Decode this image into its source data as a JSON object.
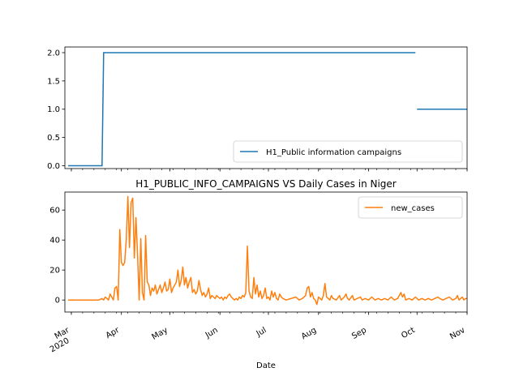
{
  "chart_data": [
    {
      "type": "line",
      "title": "",
      "xlabel": "",
      "ylabel": "",
      "ylim": [
        -0.05,
        2.1
      ],
      "yticks": [
        0.0,
        0.5,
        1.0,
        1.5,
        2.0
      ],
      "ytick_labels": [
        "0.0",
        "0.5",
        "1.0",
        "1.5",
        "2.0"
      ],
      "grid": false,
      "legend_position": "lower-right",
      "series": [
        {
          "name": "H1_Public information campaigns",
          "color": "#1f77b4",
          "segments": [
            [
              [
                "2020-02-28",
                0
              ],
              [
                "2020-03-20",
                0
              ],
              [
                "2020-03-21",
                2
              ],
              [
                "2020-09-30",
                2
              ]
            ],
            [
              [
                "2020-10-01",
                1
              ],
              [
                "2020-11-01",
                1
              ]
            ]
          ]
        }
      ]
    },
    {
      "type": "line",
      "title": "H1_PUBLIC_INFO_CAMPAIGNS VS Daily Cases in Niger",
      "xlabel": "Date",
      "ylabel": "",
      "ylim": [
        -8,
        72
      ],
      "yticks": [
        0,
        20,
        40,
        60
      ],
      "ytick_labels": [
        "0",
        "20",
        "40",
        "60"
      ],
      "grid": false,
      "legend_position": "top-right",
      "x_ticks": [
        {
          "date": "2020-03-01",
          "label": "Mar",
          "sublabel": "2020"
        },
        {
          "date": "2020-04-01",
          "label": "Apr"
        },
        {
          "date": "2020-05-01",
          "label": "May"
        },
        {
          "date": "2020-06-01",
          "label": "Jun"
        },
        {
          "date": "2020-07-01",
          "label": "Jul"
        },
        {
          "date": "2020-08-01",
          "label": "Aug"
        },
        {
          "date": "2020-09-01",
          "label": "Sep"
        },
        {
          "date": "2020-10-01",
          "label": "Oct"
        },
        {
          "date": "2020-11-01",
          "label": "Nov"
        }
      ],
      "series": [
        {
          "name": "new_cases",
          "color": "#ff7f0e",
          "points": [
            [
              "2020-02-28",
              0
            ],
            [
              "2020-03-05",
              0
            ],
            [
              "2020-03-10",
              0
            ],
            [
              "2020-03-15",
              0
            ],
            [
              "2020-03-18",
              0
            ],
            [
              "2020-03-20",
              1
            ],
            [
              "2020-03-21",
              0
            ],
            [
              "2020-03-22",
              2
            ],
            [
              "2020-03-23",
              1
            ],
            [
              "2020-03-24",
              0
            ],
            [
              "2020-03-25",
              4
            ],
            [
              "2020-03-26",
              2
            ],
            [
              "2020-03-27",
              0
            ],
            [
              "2020-03-28",
              8
            ],
            [
              "2020-03-29",
              9
            ],
            [
              "2020-03-30",
              0
            ],
            [
              "2020-03-31",
              47
            ],
            [
              "2020-04-01",
              25
            ],
            [
              "2020-04-02",
              23
            ],
            [
              "2020-04-03",
              25
            ],
            [
              "2020-04-04",
              40
            ],
            [
              "2020-04-05",
              69
            ],
            [
              "2020-04-06",
              35
            ],
            [
              "2020-04-07",
              65
            ],
            [
              "2020-04-08",
              68
            ],
            [
              "2020-04-09",
              28
            ],
            [
              "2020-04-10",
              55
            ],
            [
              "2020-04-11",
              30
            ],
            [
              "2020-04-12",
              0
            ],
            [
              "2020-04-13",
              41
            ],
            [
              "2020-04-14",
              5
            ],
            [
              "2020-04-15",
              0
            ],
            [
              "2020-04-16",
              43
            ],
            [
              "2020-04-17",
              12
            ],
            [
              "2020-04-18",
              10
            ],
            [
              "2020-04-19",
              3
            ],
            [
              "2020-04-20",
              8
            ],
            [
              "2020-04-21",
              6
            ],
            [
              "2020-04-22",
              10
            ],
            [
              "2020-04-23",
              4
            ],
            [
              "2020-04-24",
              7
            ],
            [
              "2020-04-25",
              10
            ],
            [
              "2020-04-26",
              5
            ],
            [
              "2020-04-27",
              8
            ],
            [
              "2020-04-28",
              12
            ],
            [
              "2020-04-29",
              6
            ],
            [
              "2020-04-30",
              7
            ],
            [
              "2020-05-01",
              14
            ],
            [
              "2020-05-02",
              5
            ],
            [
              "2020-05-03",
              8
            ],
            [
              "2020-05-04",
              10
            ],
            [
              "2020-05-05",
              12
            ],
            [
              "2020-05-06",
              20
            ],
            [
              "2020-05-07",
              9
            ],
            [
              "2020-05-08",
              13
            ],
            [
              "2020-05-09",
              22
            ],
            [
              "2020-05-10",
              10
            ],
            [
              "2020-05-11",
              15
            ],
            [
              "2020-05-12",
              8
            ],
            [
              "2020-05-13",
              12
            ],
            [
              "2020-05-14",
              15
            ],
            [
              "2020-05-15",
              5
            ],
            [
              "2020-05-16",
              7
            ],
            [
              "2020-05-17",
              4
            ],
            [
              "2020-05-18",
              6
            ],
            [
              "2020-05-19",
              13
            ],
            [
              "2020-05-20",
              7
            ],
            [
              "2020-05-21",
              3
            ],
            [
              "2020-05-22",
              5
            ],
            [
              "2020-05-23",
              2
            ],
            [
              "2020-05-24",
              4
            ],
            [
              "2020-05-25",
              8
            ],
            [
              "2020-05-26",
              1
            ],
            [
              "2020-05-27",
              3
            ],
            [
              "2020-05-28",
              2
            ],
            [
              "2020-05-29",
              1
            ],
            [
              "2020-05-30",
              3
            ],
            [
              "2020-05-31",
              2
            ],
            [
              "2020-06-01",
              1
            ],
            [
              "2020-06-02",
              2
            ],
            [
              "2020-06-03",
              0
            ],
            [
              "2020-06-04",
              2
            ],
            [
              "2020-06-05",
              1
            ],
            [
              "2020-06-06",
              3
            ],
            [
              "2020-06-07",
              4
            ],
            [
              "2020-06-08",
              2
            ],
            [
              "2020-06-09",
              1
            ],
            [
              "2020-06-10",
              0
            ],
            [
              "2020-06-11",
              1
            ],
            [
              "2020-06-12",
              0
            ],
            [
              "2020-06-13",
              2
            ],
            [
              "2020-06-14",
              1
            ],
            [
              "2020-06-15",
              3
            ],
            [
              "2020-06-16",
              2
            ],
            [
              "2020-06-17",
              5
            ],
            [
              "2020-06-18",
              36
            ],
            [
              "2020-06-19",
              6
            ],
            [
              "2020-06-20",
              2
            ],
            [
              "2020-06-21",
              1
            ],
            [
              "2020-06-22",
              15
            ],
            [
              "2020-06-23",
              4
            ],
            [
              "2020-06-24",
              10
            ],
            [
              "2020-06-25",
              2
            ],
            [
              "2020-06-26",
              6
            ],
            [
              "2020-06-27",
              1
            ],
            [
              "2020-06-28",
              3
            ],
            [
              "2020-06-29",
              8
            ],
            [
              "2020-06-30",
              1
            ],
            [
              "2020-07-01",
              2
            ],
            [
              "2020-07-02",
              0
            ],
            [
              "2020-07-03",
              6
            ],
            [
              "2020-07-04",
              2
            ],
            [
              "2020-07-05",
              5
            ],
            [
              "2020-07-06",
              1
            ],
            [
              "2020-07-07",
              0
            ],
            [
              "2020-07-08",
              4
            ],
            [
              "2020-07-09",
              2
            ],
            [
              "2020-07-10",
              1
            ],
            [
              "2020-07-12",
              0
            ],
            [
              "2020-07-15",
              1
            ],
            [
              "2020-07-18",
              2
            ],
            [
              "2020-07-20",
              0
            ],
            [
              "2020-07-22",
              1
            ],
            [
              "2020-07-24",
              3
            ],
            [
              "2020-07-25",
              8
            ],
            [
              "2020-07-26",
              9
            ],
            [
              "2020-07-27",
              2
            ],
            [
              "2020-07-28",
              5
            ],
            [
              "2020-07-29",
              1
            ],
            [
              "2020-07-30",
              0
            ],
            [
              "2020-07-31",
              -3
            ],
            [
              "2020-08-01",
              2
            ],
            [
              "2020-08-02",
              1
            ],
            [
              "2020-08-03",
              0
            ],
            [
              "2020-08-04",
              3
            ],
            [
              "2020-08-05",
              11
            ],
            [
              "2020-08-06",
              2
            ],
            [
              "2020-08-07",
              1
            ],
            [
              "2020-08-08",
              0
            ],
            [
              "2020-08-09",
              3
            ],
            [
              "2020-08-10",
              1
            ],
            [
              "2020-08-12",
              0
            ],
            [
              "2020-08-14",
              3
            ],
            [
              "2020-08-15",
              0
            ],
            [
              "2020-08-17",
              2
            ],
            [
              "2020-08-18",
              4
            ],
            [
              "2020-08-19",
              1
            ],
            [
              "2020-08-20",
              0
            ],
            [
              "2020-08-22",
              3
            ],
            [
              "2020-08-23",
              0
            ],
            [
              "2020-08-25",
              1
            ],
            [
              "2020-08-27",
              2
            ],
            [
              "2020-08-28",
              0
            ],
            [
              "2020-08-30",
              1
            ],
            [
              "2020-09-01",
              0
            ],
            [
              "2020-09-03",
              2
            ],
            [
              "2020-09-05",
              0
            ],
            [
              "2020-09-07",
              1
            ],
            [
              "2020-09-09",
              0
            ],
            [
              "2020-09-11",
              1
            ],
            [
              "2020-09-13",
              0
            ],
            [
              "2020-09-15",
              2
            ],
            [
              "2020-09-17",
              0
            ],
            [
              "2020-09-19",
              1
            ],
            [
              "2020-09-21",
              5
            ],
            [
              "2020-09-22",
              2
            ],
            [
              "2020-09-23",
              4
            ],
            [
              "2020-09-24",
              0
            ],
            [
              "2020-09-26",
              1
            ],
            [
              "2020-09-28",
              0
            ],
            [
              "2020-09-30",
              2
            ],
            [
              "2020-10-02",
              0
            ],
            [
              "2020-10-04",
              1
            ],
            [
              "2020-10-06",
              0
            ],
            [
              "2020-10-08",
              1
            ],
            [
              "2020-10-10",
              0
            ],
            [
              "2020-10-12",
              1
            ],
            [
              "2020-10-14",
              2
            ],
            [
              "2020-10-15",
              1
            ],
            [
              "2020-10-17",
              0
            ],
            [
              "2020-10-19",
              1
            ],
            [
              "2020-10-21",
              2
            ],
            [
              "2020-10-23",
              0
            ],
            [
              "2020-10-25",
              1
            ],
            [
              "2020-10-26",
              3
            ],
            [
              "2020-10-27",
              0
            ],
            [
              "2020-10-28",
              1
            ],
            [
              "2020-10-29",
              2
            ],
            [
              "2020-10-30",
              0
            ],
            [
              "2020-10-31",
              1
            ],
            [
              "2020-11-01",
              1
            ]
          ]
        }
      ]
    }
  ]
}
